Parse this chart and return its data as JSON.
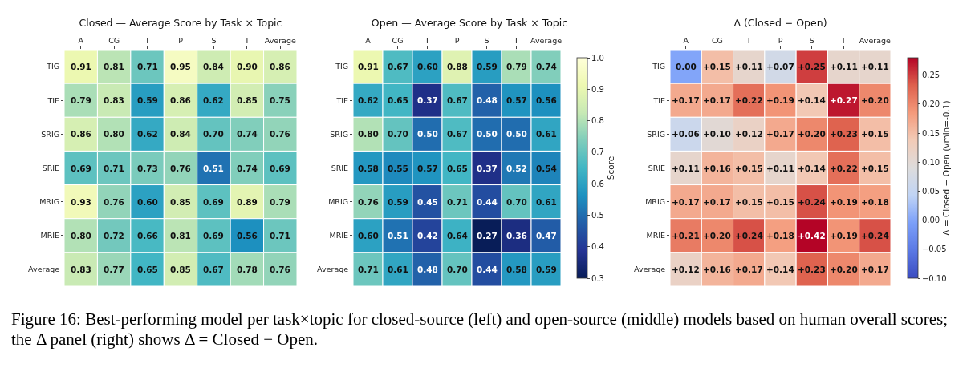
{
  "chart_data": [
    {
      "type": "heatmap",
      "title": "Closed — Average Score by Task × Topic",
      "categories": [
        "A",
        "CG",
        "I",
        "P",
        "S",
        "T",
        "Average"
      ],
      "y_categories": [
        "TIG",
        "TIE",
        "SRIG",
        "SRIE",
        "MRIG",
        "MRIE",
        "Average"
      ],
      "cells": [
        [
          0.91,
          0.81,
          0.71,
          0.95,
          0.84,
          0.9,
          0.86
        ],
        [
          0.79,
          0.83,
          0.59,
          0.86,
          0.62,
          0.85,
          0.75
        ],
        [
          0.86,
          0.8,
          0.62,
          0.84,
          0.7,
          0.74,
          0.76
        ],
        [
          0.69,
          0.71,
          0.73,
          0.76,
          0.51,
          0.74,
          0.69
        ],
        [
          0.93,
          0.76,
          0.6,
          0.85,
          0.69,
          0.89,
          0.79
        ],
        [
          0.8,
          0.72,
          0.66,
          0.81,
          0.69,
          0.56,
          0.71
        ],
        [
          0.83,
          0.77,
          0.65,
          0.85,
          0.67,
          0.78,
          0.76
        ]
      ],
      "cell_labels": [
        [
          "0.91",
          "0.81",
          "0.71",
          "0.95",
          "0.84",
          "0.90",
          "0.86"
        ],
        [
          "0.79",
          "0.83",
          "0.59",
          "0.86",
          "0.62",
          "0.85",
          "0.75"
        ],
        [
          "0.86",
          "0.80",
          "0.62",
          "0.84",
          "0.70",
          "0.74",
          "0.76"
        ],
        [
          "0.69",
          "0.71",
          "0.73",
          "0.76",
          "0.51",
          "0.74",
          "0.69"
        ],
        [
          "0.93",
          "0.76",
          "0.60",
          "0.85",
          "0.69",
          "0.89",
          "0.79"
        ],
        [
          "0.80",
          "0.72",
          "0.66",
          "0.81",
          "0.69",
          "0.56",
          "0.71"
        ],
        [
          "0.83",
          "0.77",
          "0.65",
          "0.85",
          "0.67",
          "0.78",
          "0.76"
        ]
      ],
      "annotations": [
        "Figure 16: Best-performing model per task×topic for closed-source (left) and open-source (middle) models based on human overall scores; the Δ panel (right) shows Δ = Closed − Open."
      ]
    },
    {
      "type": "heatmap",
      "title": "Open — Average Score by Task × Topic",
      "categories": [
        "A",
        "CG",
        "I",
        "P",
        "S",
        "T",
        "Average"
      ],
      "y_categories": [
        "TIG",
        "TIE",
        "SRIG",
        "SRIE",
        "MRIG",
        "MRIE",
        "Average"
      ],
      "cells": [
        [
          0.91,
          0.67,
          0.6,
          0.88,
          0.59,
          0.79,
          0.74
        ],
        [
          0.62,
          0.65,
          0.37,
          0.67,
          0.48,
          0.57,
          0.56
        ],
        [
          0.8,
          0.7,
          0.5,
          0.67,
          0.5,
          0.5,
          0.61
        ],
        [
          0.58,
          0.55,
          0.57,
          0.65,
          0.37,
          0.52,
          0.54
        ],
        [
          0.76,
          0.59,
          0.45,
          0.71,
          0.44,
          0.7,
          0.61
        ],
        [
          0.6,
          0.51,
          0.42,
          0.64,
          0.27,
          0.36,
          0.47
        ],
        [
          0.71,
          0.61,
          0.48,
          0.7,
          0.44,
          0.58,
          0.59
        ]
      ],
      "cell_labels": [
        [
          "0.91",
          "0.67",
          "0.60",
          "0.88",
          "0.59",
          "0.79",
          "0.74"
        ],
        [
          "0.62",
          "0.65",
          "0.37",
          "0.67",
          "0.48",
          "0.57",
          "0.56"
        ],
        [
          "0.80",
          "0.70",
          "0.50",
          "0.67",
          "0.50",
          "0.50",
          "0.61"
        ],
        [
          "0.58",
          "0.55",
          "0.57",
          "0.65",
          "0.37",
          "0.52",
          "0.54"
        ],
        [
          "0.76",
          "0.59",
          "0.45",
          "0.71",
          "0.44",
          "0.70",
          "0.61"
        ],
        [
          "0.60",
          "0.51",
          "0.42",
          "0.64",
          "0.27",
          "0.36",
          "0.47"
        ],
        [
          "0.71",
          "0.61",
          "0.48",
          "0.70",
          "0.44",
          "0.58",
          "0.59"
        ]
      ],
      "clabel": "Score",
      "clim": [
        0.3,
        1.0
      ],
      "cticks": [
        {
          "value": 0.3,
          "label": "0.3"
        },
        {
          "value": 0.4,
          "label": "0.4"
        },
        {
          "value": 0.5,
          "label": "0.5"
        },
        {
          "value": 0.6,
          "label": "0.6"
        },
        {
          "value": 0.7,
          "label": "0.7"
        },
        {
          "value": 0.8,
          "label": "0.8"
        },
        {
          "value": 0.9,
          "label": "0.9"
        },
        {
          "value": 1.0,
          "label": "1.0"
        }
      ]
    },
    {
      "type": "heatmap",
      "title": "Δ (Closed − Open)",
      "categories": [
        "A",
        "CG",
        "I",
        "P",
        "S",
        "T",
        "Average"
      ],
      "y_categories": [
        "TIG",
        "TIE",
        "SRIG",
        "SRIE",
        "MRIG",
        "MRIE",
        "Average"
      ],
      "cells": [
        [
          0,
          0.15,
          0.11,
          0.07,
          0.25,
          0.11,
          0.11
        ],
        [
          0.17,
          0.17,
          0.22,
          0.19,
          0.14,
          0.27,
          0.2
        ],
        [
          0.06,
          0.1,
          0.12,
          0.17,
          0.2,
          0.23,
          0.15
        ],
        [
          0.11,
          0.16,
          0.15,
          0.11,
          0.14,
          0.22,
          0.15
        ],
        [
          0.17,
          0.17,
          0.15,
          0.15,
          0.24,
          0.19,
          0.18
        ],
        [
          0.21,
          0.2,
          0.24,
          0.18,
          0.42,
          0.19,
          0.24
        ],
        [
          0.12,
          0.16,
          0.17,
          0.14,
          0.23,
          0.2,
          0.17
        ]
      ],
      "cell_labels": [
        [
          "0.00",
          "+0.15",
          "+0.11",
          "+0.07",
          "+0.25",
          "+0.11",
          "+0.11"
        ],
        [
          "+0.17",
          "+0.17",
          "+0.22",
          "+0.19",
          "+0.14",
          "+0.27",
          "+0.20"
        ],
        [
          "+0.06",
          "+0.10",
          "+0.12",
          "+0.17",
          "+0.20",
          "+0.23",
          "+0.15"
        ],
        [
          "+0.11",
          "+0.16",
          "+0.15",
          "+0.11",
          "+0.14",
          "+0.22",
          "+0.15"
        ],
        [
          "+0.17",
          "+0.17",
          "+0.15",
          "+0.15",
          "+0.24",
          "+0.19",
          "+0.18"
        ],
        [
          "+0.21",
          "+0.20",
          "+0.24",
          "+0.18",
          "+0.42",
          "+0.19",
          "+0.24"
        ],
        [
          "+0.12",
          "+0.16",
          "+0.17",
          "+0.14",
          "+0.23",
          "+0.20",
          "+0.17"
        ]
      ],
      "clabel": "Δ = Closed − Open (vmin=-0.1)",
      "clim": [
        -0.1,
        0.28
      ],
      "cticks": [
        {
          "value": -0.1,
          "label": "−0.10"
        },
        {
          "value": -0.05,
          "label": "−0.05"
        },
        {
          "value": 0,
          "label": "0.00"
        },
        {
          "value": 0.05,
          "label": "0.05"
        },
        {
          "value": 0.1,
          "label": "0.10"
        },
        {
          "value": 0.15,
          "label": "0.15"
        },
        {
          "value": 0.2,
          "label": "0.20"
        },
        {
          "value": 0.25,
          "label": "0.25"
        }
      ]
    }
  ]
}
